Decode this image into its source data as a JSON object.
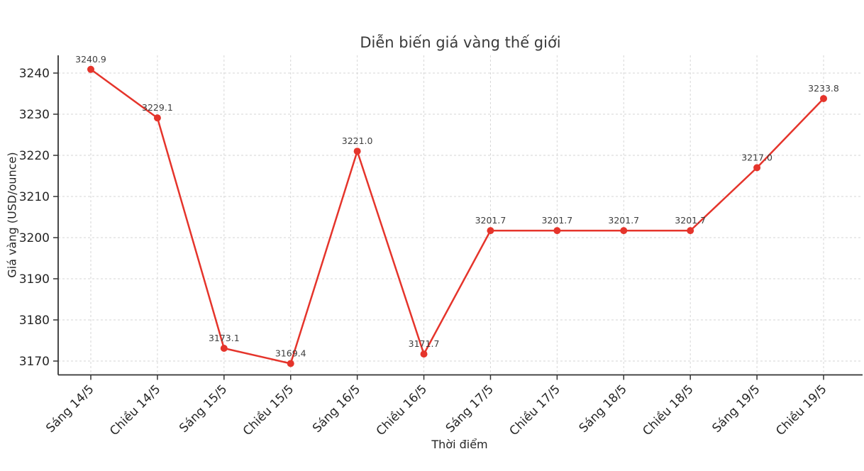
{
  "chart": {
    "title": "Diễn biến giá vàng thế giới",
    "xlabel": "Thời điểm",
    "ylabel": "Giá vàng (USD/ounce)"
  },
  "chart_data": {
    "type": "line",
    "title": "Diễn biến giá vàng thế giới",
    "xlabel": "Thời điểm",
    "ylabel": "Giá vàng (USD/ounce)",
    "categories": [
      "Sáng 14/5",
      "Chiều 14/5",
      "Sáng 15/5",
      "Chiều 15/5",
      "Sáng 16/5",
      "Chiều 16/5",
      "Sáng 17/5",
      "Chiều 17/5",
      "Sáng 18/5",
      "Chiều 18/5",
      "Sáng 19/5",
      "Chiều 19/5"
    ],
    "values": [
      3240.9,
      3229.1,
      3173.1,
      3169.4,
      3221.0,
      3171.7,
      3201.7,
      3201.7,
      3201.7,
      3201.7,
      3217.0,
      3233.8
    ],
    "data_label_decimals": 1,
    "yticks": [
      3170,
      3180,
      3190,
      3200,
      3210,
      3220,
      3230,
      3240
    ],
    "ylim": [
      3166.7,
      3244.8
    ],
    "x_tick_rotation": -45,
    "grid": true,
    "grid_style": "dashed",
    "legend_position": "none",
    "line_color": "#e5342b",
    "marker": "circle",
    "marker_color": "#e5342b",
    "grid_color": "#d6d6d6",
    "spine_color": "#333333",
    "tick_label_color": "#262626",
    "data_label_color": "#3d3d3d",
    "background_color": "#ffffff"
  }
}
